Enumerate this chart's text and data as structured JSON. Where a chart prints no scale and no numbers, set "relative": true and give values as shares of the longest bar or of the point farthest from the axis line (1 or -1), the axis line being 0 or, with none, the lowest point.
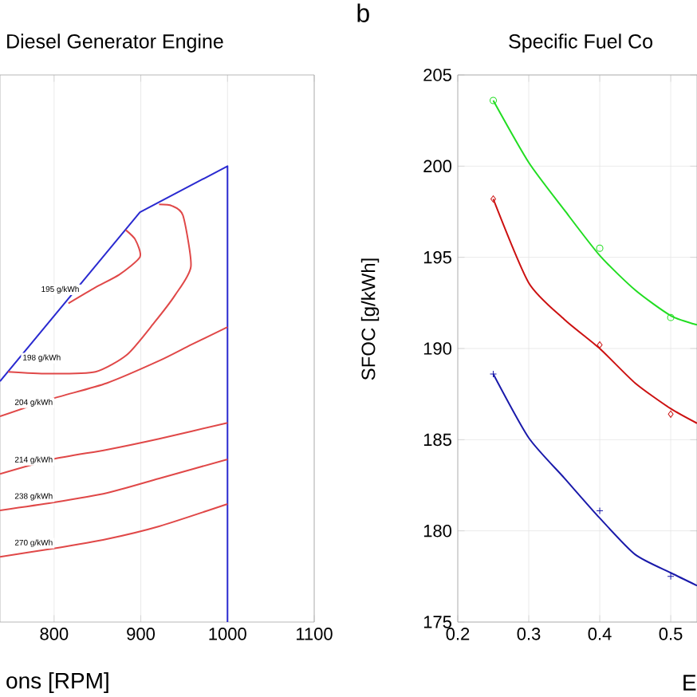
{
  "chart_data": [
    {
      "type": "line",
      "title": "Diesel Generator Engine",
      "xlabel": "ons [RPM]",
      "relative": true,
      "xlim": [
        737.6,
        1100
      ],
      "xticks": [
        800,
        900,
        1000,
        1100
      ],
      "grid": "x",
      "tick_labels": "x",
      "series": [
        {
          "color": "#2a2ad0",
          "x": [
            737.6,
            899,
            1000,
            1000
          ],
          "values": [
            0.528,
            0.899,
            1.0,
            0
          ]
        },
        {
          "name": "195 g/kWh",
          "color": "#e04848",
          "x": [
            816.5,
            847.7,
            875.2,
            899.1,
            893.6,
            882.6
          ],
          "values": [
            0.699,
            0.734,
            0.762,
            0.801,
            0.839,
            0.86
          ]
        },
        {
          "name": "198 g/kWh",
          "color": "#e04848",
          "x": [
            921.1,
            935.8,
            948.6,
            957.8,
            939.5,
            915.6,
            884.4,
            847.7,
            792.7,
            746.8
          ],
          "values": [
            0.916,
            0.913,
            0.892,
            0.78,
            0.717,
            0.657,
            0.587,
            0.549,
            0.545,
            0.549
          ]
        },
        {
          "name": "204 g/kWh",
          "color": "#e04848",
          "x": [
            737.6,
            798.2,
            860.6,
            921.1,
            957.8,
            1000
          ],
          "values": [
            0.451,
            0.49,
            0.524,
            0.573,
            0.608,
            0.647
          ]
        },
        {
          "name": "214 g/kWh",
          "color": "#e04848",
          "x": [
            737.6,
            798.2,
            860.6,
            921.1,
            1000
          ],
          "values": [
            0.325,
            0.357,
            0.378,
            0.402,
            0.437
          ]
        },
        {
          "name": "238 g/kWh",
          "color": "#e04848",
          "x": [
            737.6,
            798.2,
            860.6,
            921.1,
            1000
          ],
          "values": [
            0.245,
            0.262,
            0.283,
            0.315,
            0.357
          ]
        },
        {
          "name": "270 g/kWh",
          "color": "#e04848",
          "x": [
            737.6,
            798.2,
            860.6,
            921.1,
            1000
          ],
          "values": [
            0.143,
            0.161,
            0.182,
            0.21,
            0.259
          ]
        }
      ]
    },
    {
      "type": "line",
      "title": "Specific Fuel Co",
      "xlabel": "E",
      "ylabel": "SFOC [g/kWh]",
      "annotations": [
        "b"
      ],
      "xlim": [
        0.2,
        0.537
      ],
      "ylim": [
        175,
        205
      ],
      "xticks": [
        0.2,
        0.3,
        0.4,
        0.5
      ],
      "yticks": [
        175,
        180,
        185,
        190,
        195,
        200,
        205
      ],
      "grid": true,
      "series": [
        {
          "color": "#22dd22",
          "x": [
            0.25,
            0.3,
            0.35,
            0.4,
            0.45,
            0.5,
            0.537
          ],
          "values": [
            203.6,
            200.2,
            197.6,
            195.1,
            193.2,
            191.8,
            191.3
          ]
        },
        {
          "type": "scatter",
          "marker": "circle",
          "color": "#22dd22",
          "x": [
            0.25,
            0.4,
            0.5
          ],
          "values": [
            203.6,
            195.5,
            191.7
          ]
        },
        {
          "color": "#cc1111",
          "x": [
            0.25,
            0.3,
            0.35,
            0.4,
            0.45,
            0.5,
            0.537
          ],
          "values": [
            198.2,
            193.6,
            191.6,
            190.0,
            188.1,
            186.7,
            185.9
          ]
        },
        {
          "type": "scatter",
          "marker": "diamond",
          "color": "#cc1111",
          "x": [
            0.25,
            0.4,
            0.5
          ],
          "values": [
            198.2,
            190.2,
            186.4
          ]
        },
        {
          "color": "#1a1aaa",
          "x": [
            0.25,
            0.3,
            0.35,
            0.4,
            0.45,
            0.5,
            0.537
          ],
          "values": [
            188.6,
            185.1,
            182.9,
            180.7,
            178.7,
            177.7,
            177.0
          ]
        },
        {
          "type": "scatter",
          "marker": "cross",
          "color": "#1a1aaa",
          "x": [
            0.25,
            0.4,
            0.5
          ],
          "values": [
            188.6,
            181.1,
            177.5
          ]
        }
      ]
    }
  ]
}
